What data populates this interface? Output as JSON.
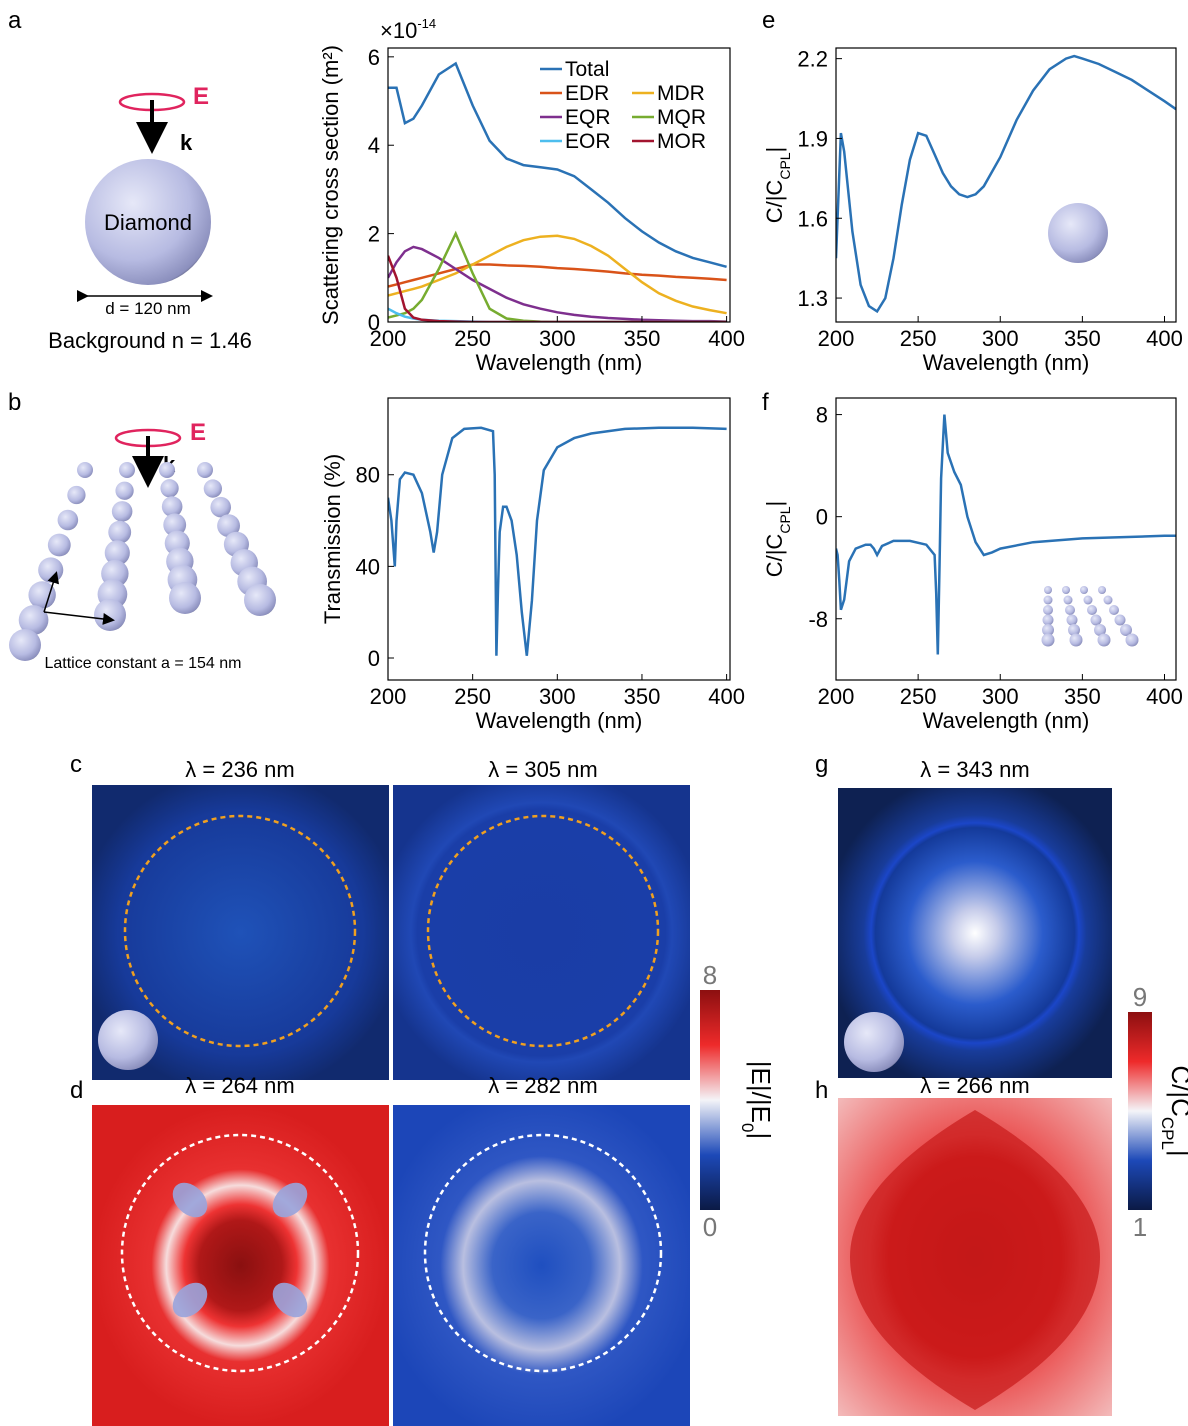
{
  "chart_data": [
    {
      "type": "line",
      "x_multiplier": {
        "base": "×10",
        "exponent": "-14"
      },
      "y_label": "Scattering cross section (m²)",
      "x_label": "Wavelength (nm)",
      "xlim": [
        200,
        402
      ],
      "xticks": [
        200,
        250,
        300,
        350,
        400
      ],
      "ylim": [
        0,
        6.2
      ],
      "yticks": [
        0,
        2,
        4,
        6
      ],
      "legend": "upper right",
      "x": [
        200,
        205,
        210,
        215,
        220,
        230,
        240,
        250,
        260,
        270,
        280,
        290,
        300,
        310,
        320,
        330,
        340,
        350,
        360,
        370,
        380,
        390,
        400
      ],
      "series": [
        {
          "name": "Total",
          "color": "#2a72b5",
          "values": [
            5.3,
            5.3,
            4.5,
            4.6,
            4.9,
            5.6,
            5.85,
            4.9,
            4.1,
            3.7,
            3.55,
            3.5,
            3.45,
            3.3,
            3.0,
            2.7,
            2.35,
            2.05,
            1.8,
            1.6,
            1.45,
            1.35,
            1.25
          ]
        },
        {
          "name": "EDR",
          "color": "#d95319",
          "values": [
            0.8,
            0.85,
            0.9,
            0.95,
            1.0,
            1.1,
            1.2,
            1.3,
            1.3,
            1.28,
            1.27,
            1.25,
            1.22,
            1.2,
            1.17,
            1.14,
            1.1,
            1.07,
            1.05,
            1.02,
            1.0,
            0.98,
            0.95
          ]
        },
        {
          "name": "MDR",
          "color": "#edb120",
          "values": [
            0.6,
            0.65,
            0.7,
            0.75,
            0.8,
            0.95,
            1.1,
            1.3,
            1.5,
            1.7,
            1.85,
            1.93,
            1.95,
            1.88,
            1.72,
            1.5,
            1.2,
            0.9,
            0.65,
            0.48,
            0.35,
            0.27,
            0.2
          ]
        },
        {
          "name": "EQR",
          "color": "#7e2f8e",
          "values": [
            1.0,
            1.35,
            1.6,
            1.7,
            1.65,
            1.45,
            1.2,
            0.95,
            0.75,
            0.55,
            0.4,
            0.3,
            0.22,
            0.16,
            0.12,
            0.09,
            0.07,
            0.05,
            0.04,
            0.03,
            0.02,
            0.02,
            0.01
          ]
        },
        {
          "name": "MQR",
          "color": "#77ac30",
          "values": [
            0.1,
            0.15,
            0.2,
            0.3,
            0.5,
            1.2,
            2.0,
            1.1,
            0.3,
            0.08,
            0.03,
            0.01,
            0,
            0,
            0,
            0,
            0,
            0,
            0,
            0,
            0,
            0,
            0
          ]
        },
        {
          "name": "EOR",
          "color": "#4dbeee",
          "values": [
            0.3,
            0.2,
            0.12,
            0.08,
            0.05,
            0.03,
            0.02,
            0.01,
            0,
            0,
            0,
            0,
            0,
            0,
            0,
            0,
            0,
            0,
            0,
            0,
            0,
            0,
            0
          ]
        },
        {
          "name": "MOR",
          "color": "#a2142f",
          "values": [
            1.5,
            1.0,
            0.3,
            0.1,
            0.05,
            0.02,
            0.01,
            0,
            0,
            0,
            0,
            0,
            0,
            0,
            0,
            0,
            0,
            0,
            0,
            0,
            0,
            0,
            0
          ]
        }
      ]
    },
    {
      "type": "line",
      "y_label": "Transmission (%)",
      "x_label": "Wavelength (nm)",
      "xlim": [
        200,
        402
      ],
      "xticks": [
        200,
        250,
        300,
        350,
        400
      ],
      "ylim": [
        -9.6,
        113.5
      ],
      "yticks": [
        0,
        40,
        80
      ],
      "x": [
        200,
        202,
        204,
        205,
        207,
        210,
        215,
        220,
        225,
        227,
        229,
        232,
        238,
        245,
        255,
        262,
        263,
        264,
        265,
        266,
        268,
        270,
        273,
        276,
        279,
        282,
        285,
        288,
        292,
        300,
        310,
        320,
        340,
        360,
        380,
        400
      ],
      "series": [
        {
          "color": "#2a72b5",
          "values": [
            70,
            60,
            40,
            60,
            78,
            81,
            80,
            72,
            55,
            46,
            55,
            80,
            96,
            100,
            100.5,
            99,
            80,
            1,
            30,
            55,
            66,
            66,
            60,
            45,
            20,
            1,
            25,
            60,
            82,
            92,
            96,
            98,
            100,
            100.5,
            100.5,
            100
          ]
        }
      ]
    },
    {
      "type": "line",
      "y_label": [
        "C/|C",
        "CPL",
        "|"
      ],
      "x_label": "Wavelength (nm)",
      "xlim": [
        200,
        407
      ],
      "xticks": [
        200,
        250,
        300,
        350,
        400
      ],
      "ylim": [
        1.21,
        2.24
      ],
      "yticks": [
        1.3,
        1.6,
        1.9,
        2.2
      ],
      "x": [
        200,
        203,
        205,
        210,
        215,
        220,
        225,
        230,
        235,
        240,
        245,
        250,
        255,
        260,
        265,
        270,
        275,
        280,
        285,
        290,
        300,
        310,
        320,
        330,
        340,
        345,
        350,
        360,
        370,
        380,
        390,
        400,
        407
      ],
      "series": [
        {
          "color": "#2a72b5",
          "values": [
            1.45,
            1.92,
            1.85,
            1.55,
            1.35,
            1.27,
            1.25,
            1.3,
            1.45,
            1.65,
            1.82,
            1.92,
            1.91,
            1.84,
            1.77,
            1.72,
            1.69,
            1.68,
            1.69,
            1.72,
            1.83,
            1.97,
            2.08,
            2.16,
            2.2,
            2.21,
            2.2,
            2.18,
            2.15,
            2.12,
            2.08,
            2.04,
            2.01
          ]
        }
      ]
    },
    {
      "type": "line",
      "y_label": [
        "C/|C",
        "CPL",
        "|"
      ],
      "x_label": "Wavelength (nm)",
      "xlim": [
        200,
        407
      ],
      "xticks": [
        200,
        250,
        300,
        350,
        400
      ],
      "ylim": [
        -12.8,
        9.3
      ],
      "yticks": [
        -8,
        0,
        8
      ],
      "x": [
        200,
        201,
        202,
        203,
        205,
        208,
        212,
        218,
        221,
        223,
        225,
        228,
        235,
        245,
        255,
        260,
        261,
        262,
        263,
        264,
        266,
        268,
        272,
        276,
        280,
        285,
        290,
        295,
        300,
        320,
        350,
        400,
        407
      ],
      "series": [
        {
          "color": "#2a72b5",
          "values": [
            -2.5,
            -3,
            -5,
            -7.3,
            -6.5,
            -3.5,
            -2.5,
            -2.2,
            -2.2,
            -2.5,
            -3,
            -2.3,
            -1.9,
            -1.9,
            -2.2,
            -3,
            -6,
            -10.8,
            -4,
            3,
            8,
            5,
            3.5,
            2.5,
            0,
            -2,
            -3,
            -2.8,
            -2.5,
            -2,
            -1.7,
            -1.5,
            -1.5
          ]
        }
      ]
    }
  ],
  "panel_labels": [
    "a",
    "b",
    "c",
    "d",
    "e",
    "f",
    "g",
    "h"
  ],
  "diagram_a": {
    "field": "E",
    "wavevector": "k",
    "particle": "Diamond",
    "diameter": "d = 120 nm",
    "background": "Background n = 1.46"
  },
  "diagram_b": {
    "field": "E",
    "wavevector": "k",
    "lattice": "Lattice constant a = 154 nm"
  },
  "maps": {
    "c": [
      "λ = 236 nm",
      "λ = 305 nm"
    ],
    "d": [
      "λ = 264 nm",
      "λ = 282 nm"
    ],
    "g": [
      "λ = 343 nm"
    ],
    "h": [
      "λ = 266 nm"
    ]
  },
  "colorbars": [
    {
      "label": [
        "|E|/|E",
        "0",
        "|"
      ],
      "range": [
        0,
        8
      ],
      "ticks": [
        0,
        8
      ]
    },
    {
      "label": [
        "C/|C",
        "CPL",
        "|"
      ],
      "range": [
        1,
        9
      ],
      "ticks": [
        1,
        9
      ]
    }
  ]
}
